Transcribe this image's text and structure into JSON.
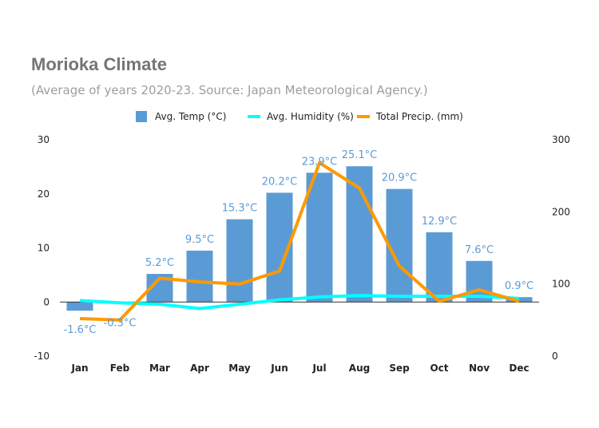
{
  "chart_data": {
    "type": "bar",
    "title": "Morioka Climate",
    "subtitle": "(Average of years 2020-23. Source: Japan Meteorological Agency.)",
    "categories": [
      "Jan",
      "Feb",
      "Mar",
      "Apr",
      "May",
      "Jun",
      "Jul",
      "Aug",
      "Sep",
      "Oct",
      "Nov",
      "Dec"
    ],
    "y_left": {
      "min": -10,
      "max": 30,
      "ticks": [
        -10,
        0,
        10,
        20,
        30
      ]
    },
    "y_right": {
      "min": 0,
      "max": 300,
      "ticks": [
        0,
        100,
        200,
        300
      ]
    },
    "grid": false,
    "legend_position": "top",
    "series": [
      {
        "name": "Avg. Temp (°C)",
        "type": "bar",
        "axis": "left",
        "color": "#5b9bd5",
        "values": [
          -1.6,
          -0.3,
          5.2,
          9.5,
          15.3,
          20.2,
          23.9,
          25.1,
          20.9,
          12.9,
          7.6,
          0.9
        ],
        "labels": [
          "-1.6°C",
          "-0.3°C",
          "5.2°C",
          "9.5°C",
          "15.3°C",
          "20.2°C",
          "23.9°C",
          "25.1°C",
          "20.9°C",
          "12.9°C",
          "7.6°C",
          "0.9°C"
        ]
      },
      {
        "name": "Avg. Humidity (%)",
        "type": "line",
        "axis": "right",
        "color": "#00ffff",
        "values": [
          77,
          74,
          72,
          66,
          72,
          78,
          82,
          84,
          83,
          83,
          83,
          80
        ]
      },
      {
        "name": "Total Precip. (mm)",
        "type": "line",
        "axis": "right",
        "color": "#ff9900",
        "values": [
          52,
          50,
          108,
          103,
          100,
          118,
          268,
          233,
          125,
          76,
          92,
          76
        ]
      }
    ]
  }
}
